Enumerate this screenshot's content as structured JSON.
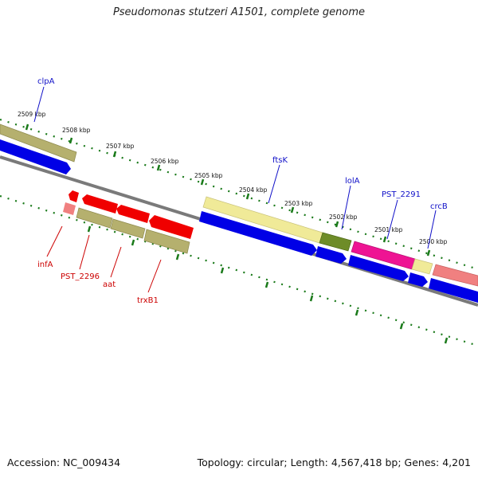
{
  "title": "Pseudomonas stutzeri A1501, complete genome",
  "footer": {
    "accession": "Accession: NC_009434",
    "summary": "Topology: circular; Length: 4,567,418 bp; Genes: 4,201"
  },
  "ruler": {
    "unit": "kbp",
    "labels": [
      "2509 kbp",
      "2508 kbp",
      "2507 kbp",
      "2506 kbp",
      "2505 kbp",
      "2504 kbp",
      "2503 kbp",
      "2502 kbp",
      "2501 kbp",
      "2500 kbp"
    ]
  },
  "gene_labels": {
    "top": [
      "clpA",
      "ftsK",
      "lolA",
      "PST_2291",
      "crcB"
    ],
    "bottom": [
      "infA",
      "PST_2296",
      "aat",
      "trxB1"
    ]
  },
  "colors": {
    "label_top": "#1010c8",
    "label_bottom": "#cc0000",
    "tick": "#1a7a1a",
    "backbone": "#808080",
    "blue": "#0000e6",
    "red": "#f00000",
    "khaki": "#b5b06e",
    "pale_yellow": "#f0ea98",
    "olive": "#6e8c28",
    "magenta": "#ee1493",
    "salmon": "#f08080"
  }
}
